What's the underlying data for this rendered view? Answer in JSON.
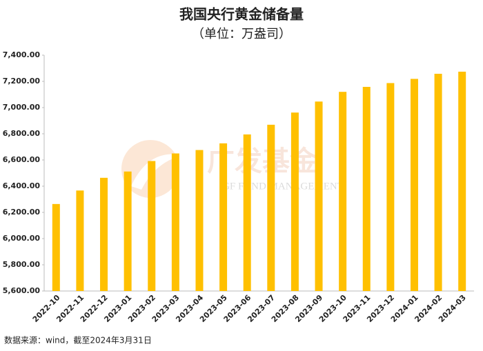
{
  "chart_data": {
    "type": "bar",
    "title": "我国央行黄金储备量",
    "subtitle": "（单位：万盎司）",
    "categories": [
      "2022-10",
      "2022-11",
      "2022-12",
      "2023-01",
      "2023-02",
      "2023-03",
      "2023-04",
      "2023-05",
      "2023-06",
      "2023-07",
      "2023-08",
      "2023-09",
      "2023-10",
      "2023-11",
      "2023-12",
      "2024-01",
      "2024-02",
      "2024-03"
    ],
    "values": [
      6264,
      6367,
      6464,
      6512,
      6592,
      6650,
      6676,
      6727,
      6795,
      6869,
      6962,
      7046,
      7120,
      7158,
      7187,
      7219,
      7258,
      7274
    ],
    "color": "#ffc000",
    "ylim": [
      5600,
      7400
    ],
    "yticks": [
      {
        "value": 5600,
        "label": "5,600.00"
      },
      {
        "value": 5800,
        "label": "5,800.00"
      },
      {
        "value": 6000,
        "label": "6,000.00"
      },
      {
        "value": 6200,
        "label": "6,200.00"
      },
      {
        "value": 6400,
        "label": "6,400.00"
      },
      {
        "value": 6600,
        "label": "6,600.00"
      },
      {
        "value": 6800,
        "label": "6,800.00"
      },
      {
        "value": 7000,
        "label": "7,000.00"
      },
      {
        "value": 7200,
        "label": "7,200.00"
      },
      {
        "value": 7400,
        "label": "7,400.00"
      }
    ],
    "grid": false,
    "source": "数据来源：wind，截至2024年3月31日",
    "watermark": {
      "name": "广发基金",
      "subtitle": "GF FUND MANAGEMENT"
    }
  }
}
